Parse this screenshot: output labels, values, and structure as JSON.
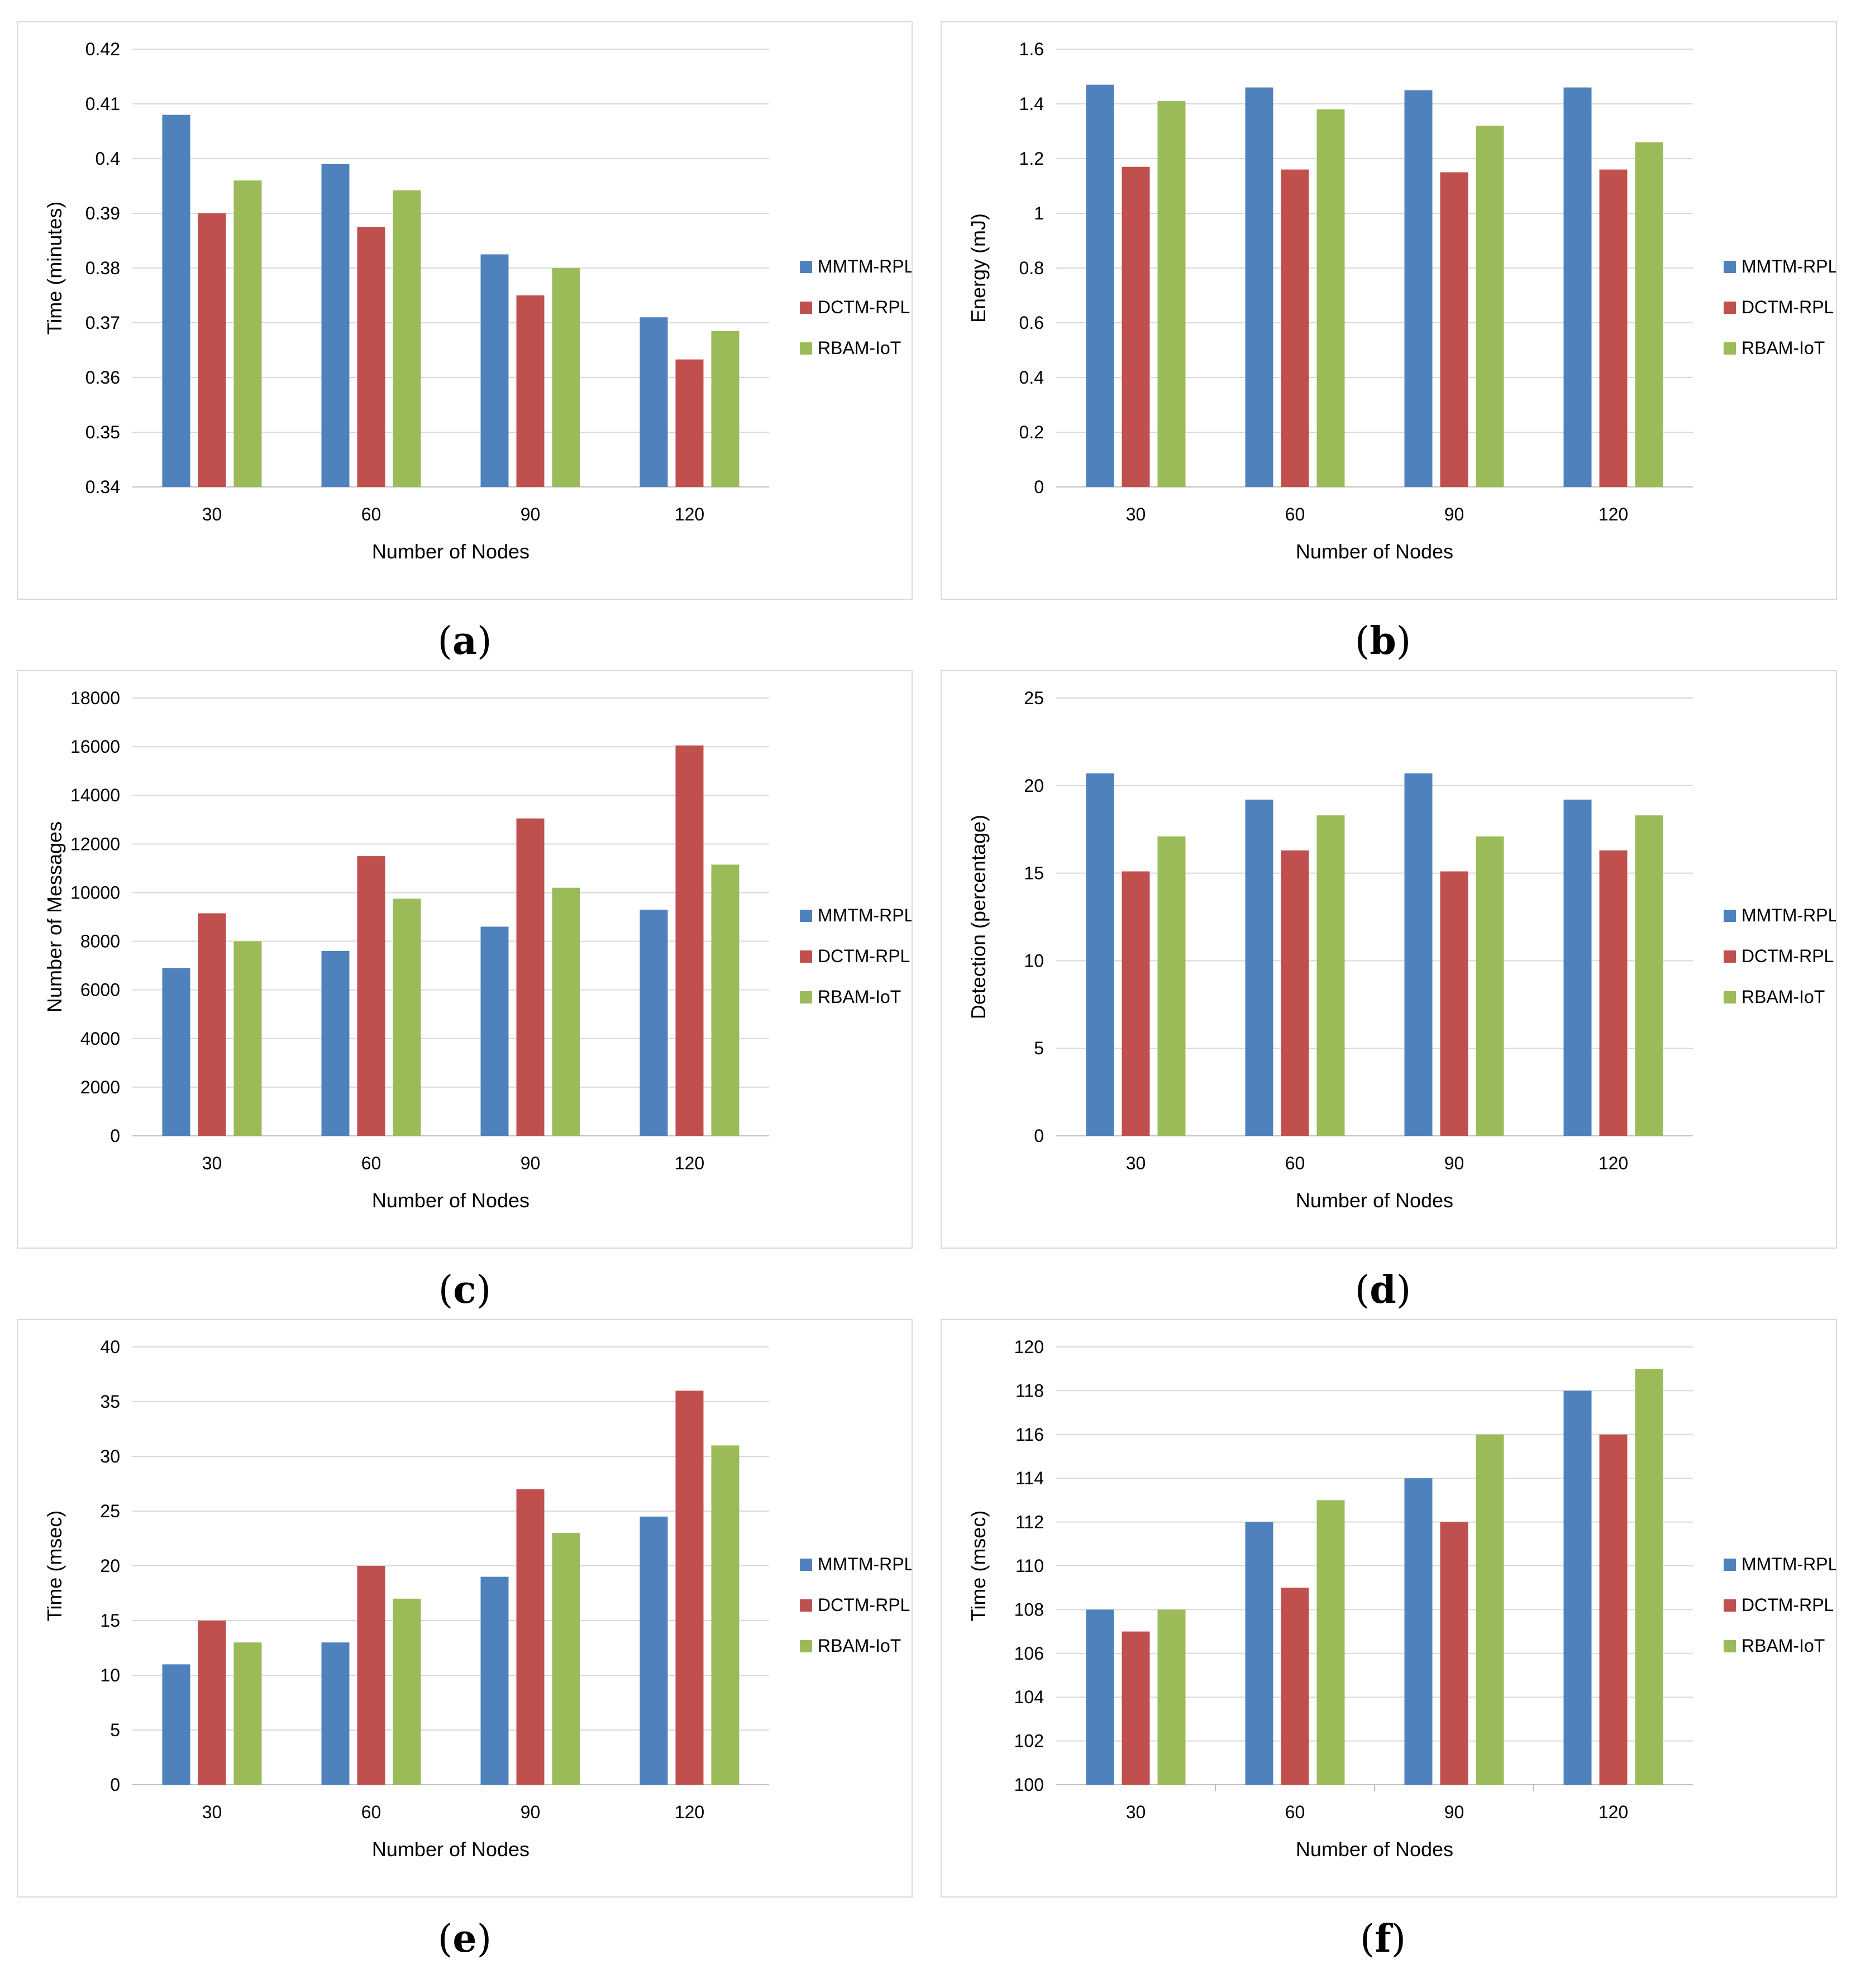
{
  "series_colors": {
    "MMTM-RPL": "#4f81bd",
    "DCTM-RPL": "#c0504d",
    "RBAM-IoT": "#9bbb59"
  },
  "chart_data": [
    {
      "id": "a",
      "caption_letter": "a",
      "type": "bar",
      "title": "",
      "xlabel": "Number of Nodes",
      "ylabel": "Time (minutes)",
      "categories": [
        "30",
        "60",
        "90",
        "120"
      ],
      "ylim": [
        0.34,
        0.42
      ],
      "yticks": [
        "0.34",
        "0.35",
        "0.36",
        "0.37",
        "0.38",
        "0.39",
        "0.4",
        "0.41",
        "0.42"
      ],
      "grid": true,
      "legend": "right",
      "series": [
        {
          "name": "MMTM-RPL",
          "values": [
            0.408,
            0.399,
            0.3825,
            0.371
          ]
        },
        {
          "name": "DCTM-RPL",
          "values": [
            0.39,
            0.3875,
            0.375,
            0.3633
          ]
        },
        {
          "name": "RBAM-IoT",
          "values": [
            0.396,
            0.3942,
            0.38,
            0.3685
          ]
        }
      ]
    },
    {
      "id": "b",
      "caption_letter": "b",
      "type": "bar",
      "title": "",
      "xlabel": "Number of Nodes",
      "ylabel": "Energy (mJ)",
      "categories": [
        "30",
        "60",
        "90",
        "120"
      ],
      "ylim": [
        0,
        1.6
      ],
      "yticks": [
        "0",
        "0.2",
        "0.4",
        "0.6",
        "0.8",
        "1",
        "1.2",
        "1.4",
        "1.6"
      ],
      "grid": true,
      "legend": "right",
      "series": [
        {
          "name": "MMTM-RPL",
          "values": [
            1.47,
            1.46,
            1.45,
            1.46
          ]
        },
        {
          "name": "DCTM-RPL",
          "values": [
            1.17,
            1.16,
            1.15,
            1.16
          ]
        },
        {
          "name": "RBAM-IoT",
          "values": [
            1.41,
            1.38,
            1.32,
            1.26
          ]
        }
      ]
    },
    {
      "id": "c",
      "caption_letter": "c",
      "type": "bar",
      "title": "",
      "xlabel": "Number of Nodes",
      "ylabel": "Number of Messages",
      "categories": [
        "30",
        "60",
        "90",
        "120"
      ],
      "ylim": [
        0,
        18000
      ],
      "yticks": [
        "0",
        "2000",
        "4000",
        "6000",
        "8000",
        "10000",
        "12000",
        "14000",
        "16000",
        "18000"
      ],
      "grid": true,
      "legend": "right",
      "series": [
        {
          "name": "MMTM-RPL",
          "values": [
            6900,
            7600,
            8600,
            9300
          ]
        },
        {
          "name": "DCTM-RPL",
          "values": [
            9150,
            11500,
            13050,
            16050
          ]
        },
        {
          "name": "RBAM-IoT",
          "values": [
            8000,
            9750,
            10200,
            11150
          ]
        }
      ]
    },
    {
      "id": "d",
      "caption_letter": "d",
      "type": "bar",
      "title": "",
      "xlabel": "Number of Nodes",
      "ylabel": "Detection (percentage)",
      "categories": [
        "30",
        "60",
        "90",
        "120"
      ],
      "ylim": [
        0,
        25
      ],
      "yticks": [
        "0",
        "5",
        "10",
        "15",
        "20",
        "25"
      ],
      "grid": true,
      "legend": "right",
      "series": [
        {
          "name": "MMTM-RPL",
          "values": [
            20.7,
            19.2,
            20.7,
            19.2
          ]
        },
        {
          "name": "DCTM-RPL",
          "values": [
            15.1,
            16.3,
            15.1,
            16.3
          ]
        },
        {
          "name": "RBAM-IoT",
          "values": [
            17.1,
            18.3,
            17.1,
            18.3
          ]
        }
      ]
    },
    {
      "id": "e",
      "caption_letter": "e",
      "type": "bar",
      "title": "",
      "xlabel": "Number of Nodes",
      "ylabel": "Time (msec)",
      "categories": [
        "30",
        "60",
        "90",
        "120"
      ],
      "ylim": [
        0,
        40
      ],
      "yticks": [
        "0",
        "5",
        "10",
        "15",
        "20",
        "25",
        "30",
        "35",
        "40"
      ],
      "grid": true,
      "legend": "right",
      "series": [
        {
          "name": "MMTM-RPL",
          "values": [
            11,
            13,
            19,
            24.5
          ]
        },
        {
          "name": "DCTM-RPL",
          "values": [
            15,
            20,
            27,
            36
          ]
        },
        {
          "name": "RBAM-IoT",
          "values": [
            13,
            17,
            23,
            31
          ]
        }
      ]
    },
    {
      "id": "f",
      "caption_letter": "f",
      "type": "bar",
      "title": "",
      "xlabel": "Number of Nodes",
      "ylabel": "Time (msec)",
      "categories": [
        "30",
        "60",
        "90",
        "120"
      ],
      "ylim": [
        100,
        120
      ],
      "yticks": [
        "100",
        "102",
        "104",
        "106",
        "108",
        "110",
        "112",
        "114",
        "116",
        "118",
        "120"
      ],
      "grid": true,
      "legend": "right",
      "series": [
        {
          "name": "MMTM-RPL",
          "values": [
            108,
            112,
            114,
            118
          ]
        },
        {
          "name": "DCTM-RPL",
          "values": [
            107,
            109,
            112,
            116
          ]
        },
        {
          "name": "RBAM-IoT",
          "values": [
            108,
            113,
            116,
            119
          ]
        }
      ]
    }
  ]
}
